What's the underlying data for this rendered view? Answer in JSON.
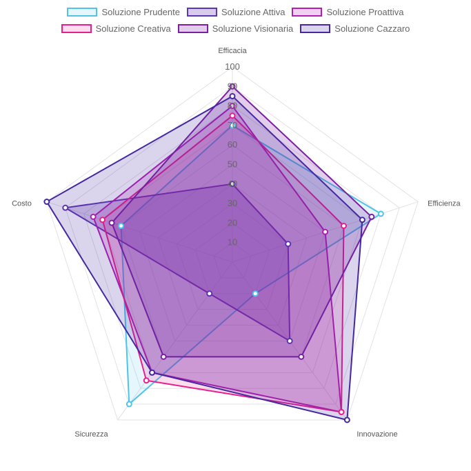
{
  "chart_data": {
    "type": "radar",
    "axes": [
      "Efficacia",
      "Efficienza",
      "Innovazione",
      "Sicurezza",
      "Costo"
    ],
    "r_ticks": [
      "10",
      "20",
      "30",
      "40",
      "50",
      "60",
      "70",
      "80",
      "90",
      "100"
    ],
    "r_range": [
      0,
      100
    ],
    "grid": true,
    "legend_position": "top",
    "series": [
      {
        "name": "Soluzione Prudente",
        "values": [
          70,
          80,
          20,
          90,
          60
        ],
        "color": "#4fc3e8",
        "fill": "rgba(79,195,232,0.15)"
      },
      {
        "name": "Soluzione Attiva",
        "values": [
          40,
          30,
          50,
          20,
          90
        ],
        "color": "#5e35b1",
        "fill": "rgba(94,53,177,0.25)"
      },
      {
        "name": "Soluzione Proattiva",
        "values": [
          80,
          50,
          95,
          70,
          75
        ],
        "color": "#b21eb2",
        "fill": "rgba(178,30,178,0.20)"
      },
      {
        "name": "Soluzione Creativa",
        "values": [
          75,
          60,
          95,
          75,
          70
        ],
        "color": "#e91e8c",
        "fill": "rgba(233,30,140,0.15)"
      },
      {
        "name": "Soluzione Visionaria",
        "values": [
          90,
          75,
          60,
          60,
          65
        ],
        "color": "#7b1fa2",
        "fill": "rgba(123,31,162,0.22)"
      },
      {
        "name": "Soluzione Cazzaro",
        "values": [
          85,
          70,
          100,
          70,
          100
        ],
        "color": "#4527a0",
        "fill": "rgba(69,39,160,0.20)"
      }
    ]
  }
}
